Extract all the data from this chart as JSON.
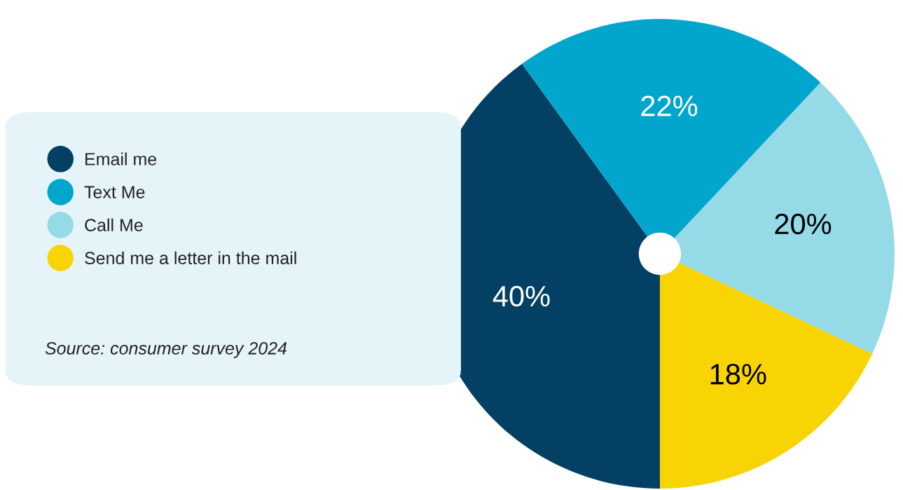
{
  "chart_data": {
    "type": "pie",
    "categories": [
      "Email me",
      "Text Me",
      "Call Me",
      "Send me a letter in the mail"
    ],
    "values": [
      40,
      22,
      20,
      18
    ],
    "colors": [
      "#034063",
      "#02a6cc",
      "#95dae7",
      "#f8d404"
    ],
    "value_labels": [
      "40%",
      "22%",
      "20%",
      "18%"
    ],
    "legend": "left",
    "annotations": [
      "Source: consumer survey 2024"
    ]
  }
}
